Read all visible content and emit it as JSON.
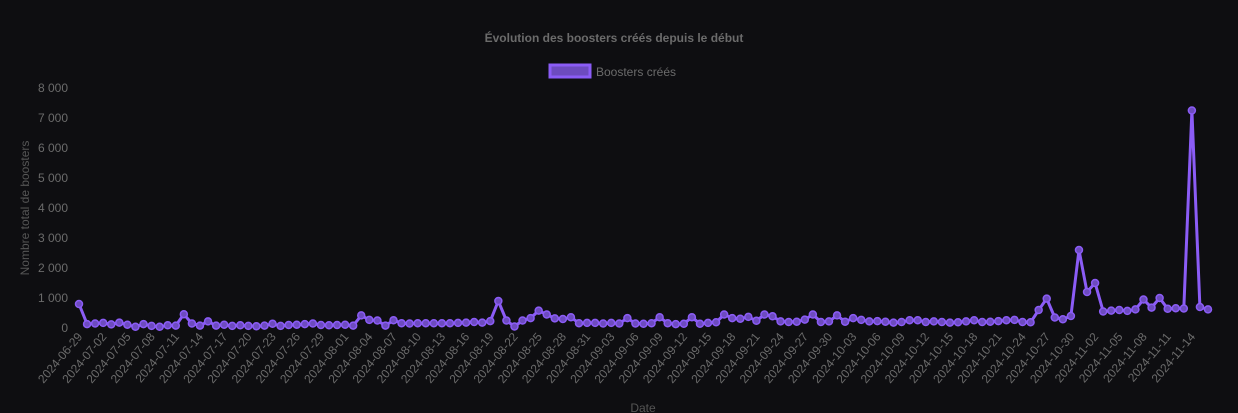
{
  "chart_data": {
    "type": "line",
    "title": "Évolution des boosters créés depuis le début",
    "xlabel": "Date",
    "ylabel": "Nombre total de boosters",
    "ylim": [
      0,
      8000
    ],
    "yticks": [
      "0",
      "1 000",
      "2 000",
      "3 000",
      "4 000",
      "5 000",
      "6 000",
      "7 000",
      "8 000"
    ],
    "legend_position": "top",
    "grid": false,
    "colors": {
      "line": "#8b5cf6",
      "point_fill": "#6d4bbf",
      "background": "#0e0e11",
      "text": "#6b6b6b"
    },
    "series": [
      {
        "name": "Boosters créés",
        "values": [
          800,
          130,
          150,
          170,
          120,
          180,
          110,
          40,
          130,
          70,
          40,
          90,
          80,
          460,
          150,
          80,
          220,
          80,
          110,
          70,
          90,
          70,
          60,
          80,
          140,
          70,
          100,
          110,
          130,
          150,
          100,
          90,
          100,
          110,
          80,
          420,
          270,
          250,
          80,
          260,
          160,
          150,
          160,
          160,
          160,
          160,
          160,
          170,
          180,
          200,
          180,
          230,
          900,
          250,
          50,
          250,
          330,
          580,
          450,
          320,
          300,
          360,
          160,
          170,
          170,
          150,
          170,
          150,
          330,
          150,
          140,
          160,
          360,
          160,
          130,
          140,
          360,
          140,
          170,
          190,
          450,
          330,
          310,
          370,
          240,
          450,
          390,
          220,
          200,
          210,
          280,
          450,
          200,
          220,
          420,
          210,
          330,
          270,
          220,
          230,
          210,
          180,
          200,
          260,
          260,
          200,
          220,
          200,
          180,
          190,
          220,
          260,
          200,
          210,
          230,
          260,
          270,
          200,
          190,
          600,
          980,
          350,
          290,
          400,
          2600,
          1200,
          1500,
          550,
          580,
          600,
          570,
          620,
          950,
          680,
          1000,
          640,
          660,
          650,
          7250,
          700,
          620
        ]
      }
    ],
    "categories": [
      "2024-06-29",
      "2024-06-30",
      "2024-07-01",
      "2024-07-02",
      "2024-07-03",
      "2024-07-04",
      "2024-07-05",
      "2024-07-06",
      "2024-07-07",
      "2024-07-08",
      "2024-07-09",
      "2024-07-10",
      "2024-07-11",
      "2024-07-12",
      "2024-07-13",
      "2024-07-14",
      "2024-07-15",
      "2024-07-16",
      "2024-07-17",
      "2024-07-18",
      "2024-07-19",
      "2024-07-20",
      "2024-07-21",
      "2024-07-22",
      "2024-07-23",
      "2024-07-24",
      "2024-07-25",
      "2024-07-26",
      "2024-07-27",
      "2024-07-28",
      "2024-07-29",
      "2024-07-30",
      "2024-07-31",
      "2024-08-01",
      "2024-08-02",
      "2024-08-03",
      "2024-08-04",
      "2024-08-05",
      "2024-08-06",
      "2024-08-07",
      "2024-08-08",
      "2024-08-09",
      "2024-08-10",
      "2024-08-11",
      "2024-08-12",
      "2024-08-13",
      "2024-08-14",
      "2024-08-15",
      "2024-08-16",
      "2024-08-17",
      "2024-08-18",
      "2024-08-19",
      "2024-08-20",
      "2024-08-21",
      "2024-08-22",
      "2024-08-23",
      "2024-08-24",
      "2024-08-25",
      "2024-08-26",
      "2024-08-27",
      "2024-08-28",
      "2024-08-29",
      "2024-08-30",
      "2024-08-31",
      "2024-09-01",
      "2024-09-02",
      "2024-09-03",
      "2024-09-04",
      "2024-09-05",
      "2024-09-06",
      "2024-09-07",
      "2024-09-08",
      "2024-09-09",
      "2024-09-10",
      "2024-09-11",
      "2024-09-12",
      "2024-09-13",
      "2024-09-14",
      "2024-09-15",
      "2024-09-16",
      "2024-09-17",
      "2024-09-18",
      "2024-09-19",
      "2024-09-20",
      "2024-09-21",
      "2024-09-22",
      "2024-09-23",
      "2024-09-24",
      "2024-09-25",
      "2024-09-26",
      "2024-09-27",
      "2024-09-28",
      "2024-09-29",
      "2024-09-30",
      "2024-10-01",
      "2024-10-02",
      "2024-10-03",
      "2024-10-04",
      "2024-10-05",
      "2024-10-06",
      "2024-10-07",
      "2024-10-08",
      "2024-10-09",
      "2024-10-10",
      "2024-10-11",
      "2024-10-12",
      "2024-10-13",
      "2024-10-14",
      "2024-10-15",
      "2024-10-16",
      "2024-10-17",
      "2024-10-18",
      "2024-10-19",
      "2024-10-20",
      "2024-10-21",
      "2024-10-22",
      "2024-10-23",
      "2024-10-24",
      "2024-10-25",
      "2024-10-26",
      "2024-10-27",
      "2024-10-28",
      "2024-10-29",
      "2024-10-30",
      "2024-10-31",
      "2024-11-01",
      "2024-11-02",
      "2024-11-03",
      "2024-11-04",
      "2024-11-05",
      "2024-11-06",
      "2024-11-07",
      "2024-11-08",
      "2024-11-09",
      "2024-11-10",
      "2024-11-11",
      "2024-11-12",
      "2024-11-13",
      "2024-11-14",
      "2024-11-15",
      "2024-11-16"
    ]
  }
}
